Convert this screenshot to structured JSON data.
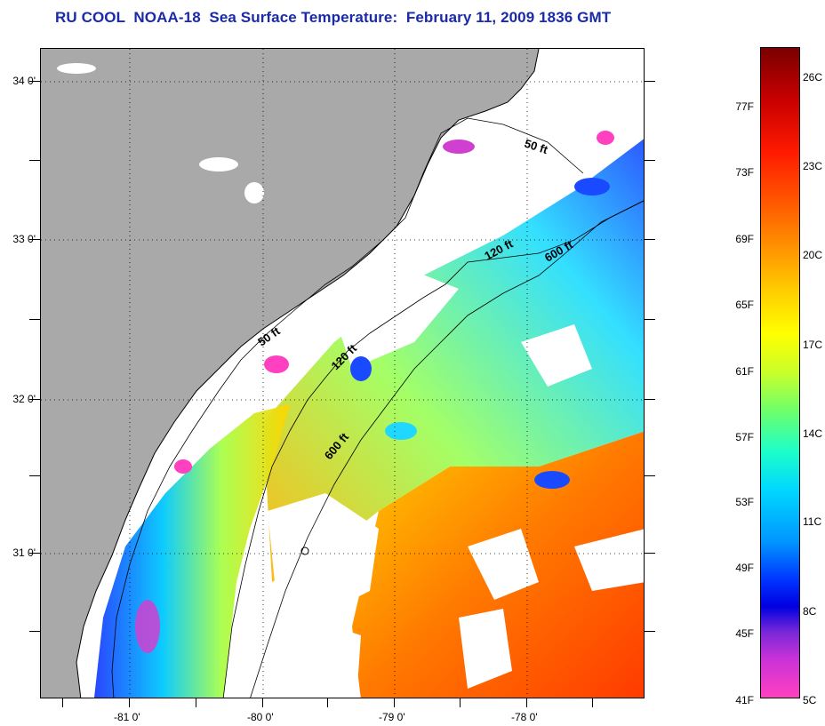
{
  "title": "RU COOL  NOAA-18  Sea Surface Temperature:  February 11, 2009 1836 GMT",
  "map": {
    "lat_labels": [
      "34 0'",
      "33 0'",
      "32 0'",
      "31 0'"
    ],
    "lon_labels": [
      "-81 0'",
      "-80 0'",
      "-79 0'",
      "-78 0'"
    ],
    "contour_labels": [
      "50 ft",
      "120 ft",
      "600 ft",
      "50 ft",
      "120 ft",
      "600 ft"
    ],
    "colors": {
      "land": "#a9a9a9",
      "cloud": "#ffffff",
      "coast": "#000000"
    }
  },
  "colorbar": {
    "fahrenheit_labels": [
      "77F",
      "73F",
      "69F",
      "65F",
      "61F",
      "57F",
      "53F",
      "49F",
      "45F",
      "41F"
    ],
    "celsius_labels": [
      "26C",
      "23C",
      "20C",
      "17C",
      "14C",
      "11C",
      "8C",
      "5C"
    ]
  }
}
